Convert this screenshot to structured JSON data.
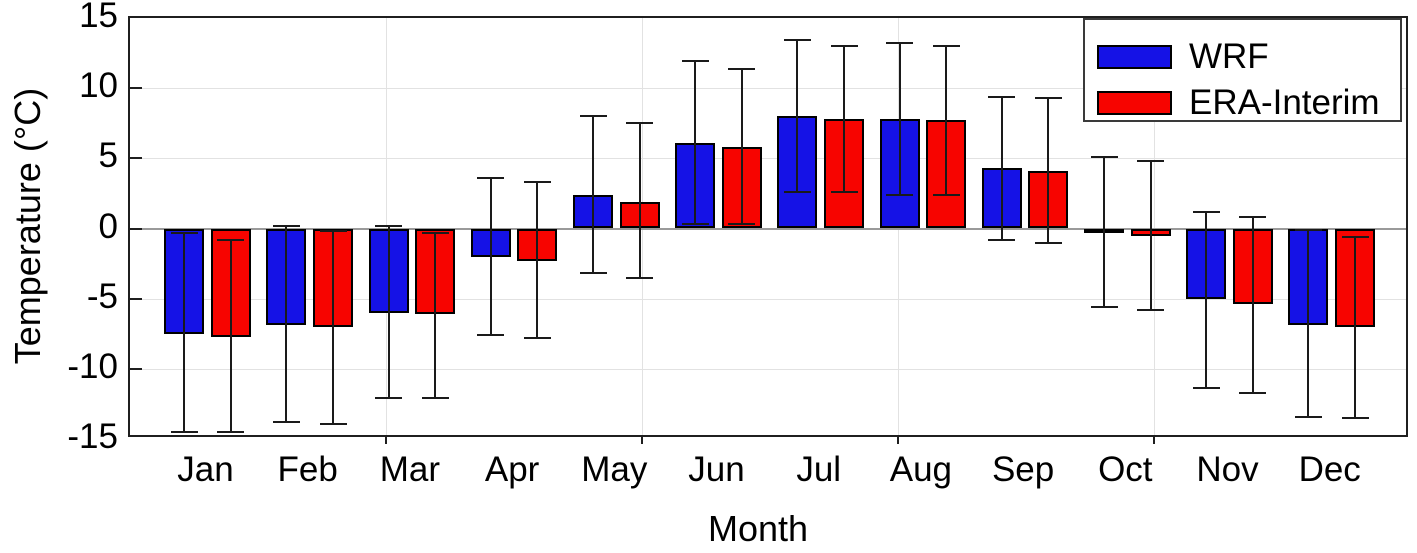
{
  "chart_data": {
    "type": "bar",
    "title": "",
    "xlabel": "Month",
    "ylabel": "Temperature (°C)",
    "ylim": [
      -15,
      15
    ],
    "yticks": [
      15,
      10,
      5,
      0,
      -5,
      -10,
      -15
    ],
    "ytick_labels": [
      "15",
      "10",
      "5",
      "0",
      "-5",
      "-10",
      "-15"
    ],
    "grid": "on",
    "legend_position": "top-right",
    "categories": [
      "Jan",
      "Feb",
      "Mar",
      "Apr",
      "May",
      "Jun",
      "Jul",
      "Aug",
      "Sep",
      "Oct",
      "Nov",
      "Dec"
    ],
    "series": [
      {
        "name": "WRF",
        "color": "#1512e6",
        "values": [
          -7.5,
          -6.9,
          -6.0,
          -2.0,
          2.4,
          6.1,
          8.0,
          7.8,
          4.3,
          -0.35,
          -5.0,
          -6.9
        ],
        "error_high": [
          -0.3,
          0.2,
          0.2,
          3.6,
          8.0,
          11.9,
          13.4,
          13.2,
          9.4,
          5.1,
          1.2,
          -0.1
        ],
        "error_low": [
          -14.5,
          -13.8,
          -12.1,
          -7.6,
          -3.2,
          0.3,
          2.6,
          2.4,
          -0.8,
          -5.6,
          -11.4,
          -13.4
        ]
      },
      {
        "name": "ERA-Interim",
        "color": "#f70400",
        "values": [
          -7.7,
          -7.0,
          -6.1,
          -2.3,
          1.9,
          5.8,
          7.8,
          7.7,
          4.1,
          -0.5,
          -5.4,
          -7.0
        ],
        "error_high": [
          -0.8,
          -0.2,
          -0.3,
          3.3,
          7.5,
          11.4,
          13.0,
          13.0,
          9.3,
          4.8,
          0.8,
          -0.6
        ],
        "error_low": [
          -14.5,
          -13.9,
          -12.1,
          -7.8,
          -3.5,
          0.3,
          2.6,
          2.4,
          -1.0,
          -5.8,
          -11.7,
          -13.5
        ]
      }
    ],
    "colors": {
      "grid": "#e2e2e2",
      "zero_line": "#9a9a9a",
      "axis_box": "#1f1f1f",
      "error_bar": "#1a1a1a",
      "background": "#ffffff"
    }
  }
}
